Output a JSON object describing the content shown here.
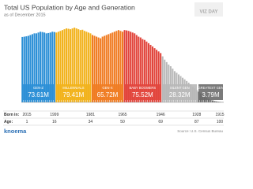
{
  "chart_data": {
    "type": "bar",
    "title": "Total US Population by Age and Generation",
    "subtitle": "as of December 2015",
    "badge": "VIZ DAY",
    "ylim": [
      0,
      4.6
    ],
    "series": [
      {
        "name": "GEN-Z",
        "color": "#2b8fd6",
        "total": 73.61,
        "total_label": "73.61M",
        "values": [
          3.98,
          4.0,
          4.02,
          4.05,
          4.1,
          4.15,
          4.2,
          4.2,
          4.25,
          4.3,
          4.28,
          4.25,
          4.2,
          4.22,
          4.25,
          4.3,
          4.28
        ]
      },
      {
        "name": "MILLENNIALS",
        "color": "#f2b21c",
        "total": 79.41,
        "total_label": "79.41M",
        "values": [
          4.25,
          4.3,
          4.35,
          4.4,
          4.45,
          4.5,
          4.48,
          4.45,
          4.5,
          4.55,
          4.5,
          4.45,
          4.4,
          4.42,
          4.35,
          4.3,
          4.25,
          4.2
        ]
      },
      {
        "name": "GEN-X",
        "color": "#f07c22",
        "total": 65.72,
        "total_label": "65.72M",
        "values": [
          4.1,
          4.05,
          4.0,
          3.95,
          3.9,
          4.0,
          4.05,
          4.1,
          4.15,
          4.2,
          4.25,
          4.3,
          4.35,
          4.4,
          4.35,
          4.3
        ]
      },
      {
        "name": "BABY BOOMERS",
        "color": "#e2453c",
        "total": 75.52,
        "total_label": "75.52M",
        "values": [
          4.4,
          4.38,
          4.35,
          4.3,
          4.25,
          4.2,
          4.1,
          4.0,
          3.95,
          3.85,
          3.8,
          3.7,
          3.6,
          3.5,
          3.4,
          3.3,
          3.2,
          3.1,
          3.0
        ]
      },
      {
        "name": "SILENT GEN",
        "color": "#b8b8b8",
        "total": 28.32,
        "total_label": "28.32M",
        "values": [
          2.8,
          2.6,
          2.45,
          2.3,
          2.2,
          2.05,
          1.9,
          1.8,
          1.7,
          1.6,
          1.5,
          1.4,
          1.3,
          1.2,
          1.1,
          0.95,
          0.85,
          0.75
        ]
      },
      {
        "name": "GREATEST GEN",
        "color": "#6c6c6c",
        "total": 3.79,
        "total_label": "3.79M",
        "values": [
          0.65,
          0.55,
          0.45,
          0.38,
          0.3,
          0.22,
          0.16,
          0.12,
          0.08,
          0.06,
          0.04,
          0.03,
          0.02
        ]
      }
    ],
    "born_in": {
      "label": "Born in:",
      "values": [
        2015,
        1999,
        1981,
        1965,
        1946,
        1928,
        1915
      ]
    },
    "age": {
      "label": "Age:",
      "values": [
        1,
        16,
        34,
        50,
        69,
        87,
        100
      ]
    },
    "footer": {
      "logo": "knoema",
      "source": "Source: U.S. Census Bureau"
    }
  }
}
